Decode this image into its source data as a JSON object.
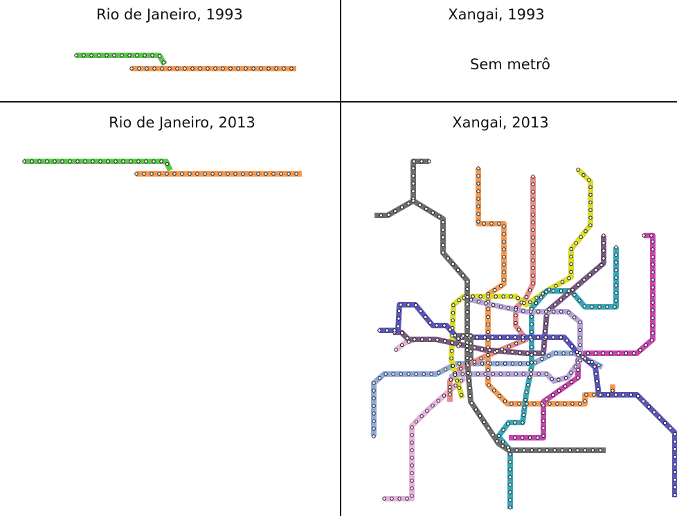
{
  "panels": [
    {
      "title": "Rio de Janeiro, 1993"
    },
    {
      "title": "Xangai, 1993",
      "note": "Sem metrô"
    },
    {
      "title": "Rio de Janeiro, 2013"
    },
    {
      "title": "Xangai, 2013"
    }
  ]
}
